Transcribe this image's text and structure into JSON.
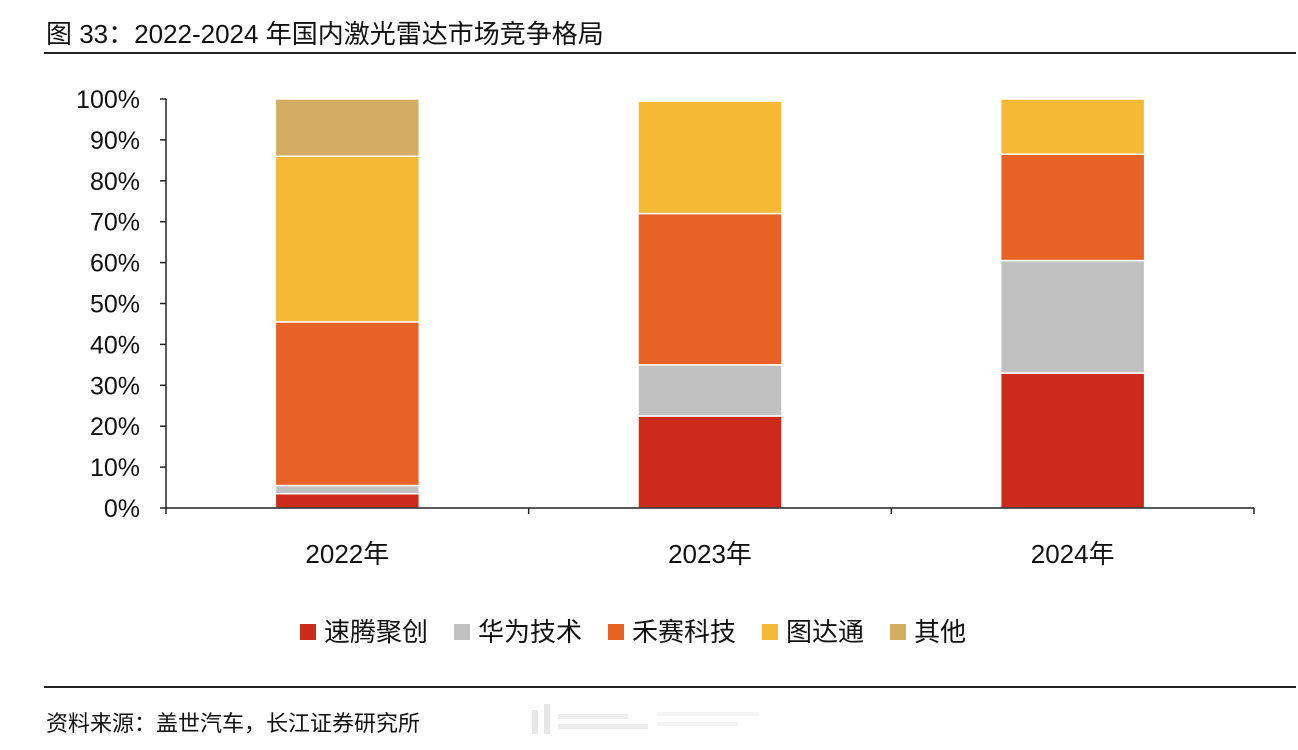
{
  "header": {
    "title": "图 33：2022-2024 年国内激光雷达市场竞争格局"
  },
  "footer": {
    "source": "资料来源：盖世汽车，长江证券研究所"
  },
  "chart_data": {
    "type": "bar",
    "stacked": true,
    "categories": [
      "2022年",
      "2023年",
      "2024年"
    ],
    "y_ticks": [
      "0%",
      "10%",
      "20%",
      "30%",
      "40%",
      "50%",
      "60%",
      "70%",
      "80%",
      "90%",
      "100%"
    ],
    "ylim": [
      0,
      100
    ],
    "grid": false,
    "legend_position": "bottom",
    "series": [
      {
        "name": "速腾聚创",
        "color": "#cc2a1b",
        "values": [
          3.5,
          22.5,
          33
        ]
      },
      {
        "name": "华为技术",
        "color": "#c0c0c0",
        "values": [
          2,
          12.5,
          27.5
        ]
      },
      {
        "name": "禾赛科技",
        "color": "#e86226",
        "values": [
          40,
          37,
          26
        ]
      },
      {
        "name": "图达通",
        "color": "#f5b935",
        "values": [
          40.5,
          27.5,
          13.5
        ]
      },
      {
        "name": "其他",
        "color": "#d2ad62",
        "values": [
          14,
          0,
          0
        ]
      }
    ]
  }
}
